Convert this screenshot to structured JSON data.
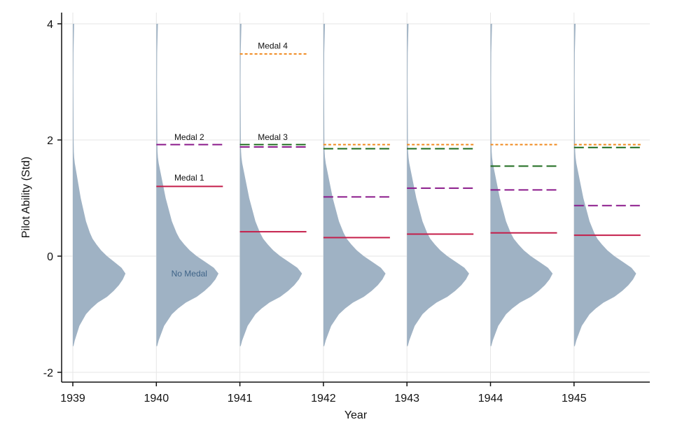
{
  "chart_data": {
    "type": "violin-density-with-thresholds",
    "xlabel": "Year",
    "ylabel": "Pilot Ability (Std)",
    "ylim": [
      -2.1,
      4.1
    ],
    "yticks": [
      -2,
      0,
      2,
      4
    ],
    "ytick_labels": [
      "-2",
      "0",
      "2",
      "4"
    ],
    "categories": [
      "1939",
      "1940",
      "1941",
      "1942",
      "1943",
      "1944",
      "1945"
    ],
    "grid": true,
    "colors": {
      "density": "#9fb2c4",
      "medal1": "#c41e4a",
      "medal2": "#8b1a8b",
      "medal3": "#1e6b1e",
      "medal4": "#f08a1e",
      "nomedal_text": "#3f6488"
    },
    "density_profile": {
      "y": [
        -1.55,
        -1.45,
        -1.2,
        -1.0,
        -0.9,
        -0.8,
        -0.7,
        -0.6,
        -0.5,
        -0.4,
        -0.3,
        -0.2,
        -0.1,
        0.0,
        0.1,
        0.2,
        0.3,
        0.4,
        0.6,
        0.8,
        1.0,
        1.2,
        1.4,
        1.6,
        1.7,
        1.8,
        2.0,
        2.5,
        3.0,
        3.5,
        4.0
      ],
      "width": [
        0.01,
        0.03,
        0.1,
        0.2,
        0.28,
        0.38,
        0.52,
        0.62,
        0.7,
        0.76,
        0.8,
        0.74,
        0.63,
        0.52,
        0.43,
        0.36,
        0.3,
        0.26,
        0.2,
        0.16,
        0.12,
        0.09,
        0.06,
        0.03,
        0.02,
        0.015,
        0.012,
        0.01,
        0.008,
        0.01,
        0.02
      ]
    },
    "series": [
      {
        "name": "Medal 1",
        "style": "solid",
        "values": [
          null,
          1.2,
          0.42,
          0.32,
          0.38,
          0.4,
          0.36
        ]
      },
      {
        "name": "Medal 2",
        "style": "dash",
        "values": [
          null,
          1.92,
          1.88,
          1.02,
          1.17,
          1.14,
          0.87
        ]
      },
      {
        "name": "Medal 3",
        "style": "dash",
        "values": [
          null,
          null,
          1.92,
          1.85,
          1.85,
          1.55,
          1.87
        ]
      },
      {
        "name": "Medal 4",
        "style": "dot",
        "values": [
          null,
          null,
          3.48,
          1.92,
          1.92,
          1.92,
          1.92
        ]
      }
    ],
    "annotations": [
      {
        "text": "Medal 1",
        "year": "1940",
        "y": 1.35
      },
      {
        "text": "Medal 2",
        "year": "1940",
        "y": 2.05
      },
      {
        "text": "Medal 3",
        "year": "1941",
        "y": 2.05
      },
      {
        "text": "Medal 4",
        "year": "1941",
        "y": 3.62
      },
      {
        "text": "No Medal",
        "year": "1940",
        "y": -0.3
      }
    ]
  }
}
